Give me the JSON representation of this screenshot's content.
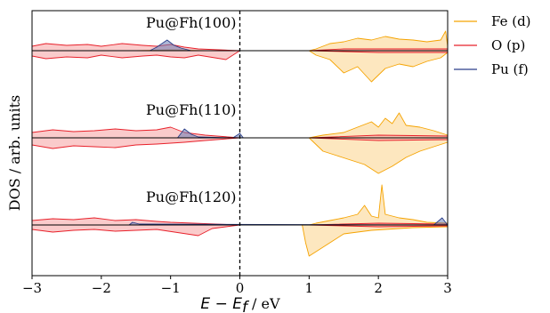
{
  "chart_data": {
    "type": "area",
    "xlabel": {
      "math": "E − E",
      "sub": "f",
      "unit": " / eV"
    },
    "ylabel": "DOS / arb. units",
    "xlim": [
      -3,
      3
    ],
    "xticks": [
      -3,
      -2,
      -1,
      0,
      1,
      2,
      3
    ],
    "xtick_labels": [
      "−3",
      "−2",
      "−1",
      "0",
      "1",
      "2",
      "3"
    ],
    "fermi_level_line": {
      "x": 0,
      "style": "dashed"
    },
    "legend": {
      "placement": "outside-right"
    },
    "series_styles": [
      {
        "name": "Fe (d)",
        "color": "#f5a300",
        "fill": "#fbd38a"
      },
      {
        "name": "O (p)",
        "color": "#e8202a",
        "fill": "#f5a0a0"
      },
      {
        "name": "Pu (f)",
        "color": "#2a3f8a",
        "fill": "#6a7bb5"
      }
    ],
    "panels": [
      {
        "label": "Pu@Fh(100)",
        "baseline_level": 2,
        "series": [
          {
            "name": "Fe (d)",
            "up": [
              [
                -3,
                0
              ],
              [
                -2.5,
                0
              ],
              [
                -2.0,
                0
              ],
              [
                -1.5,
                0
              ],
              [
                -1.0,
                0.01
              ],
              [
                -0.5,
                0
              ],
              [
                0,
                0
              ],
              [
                0.5,
                0
              ],
              [
                1.0,
                0
              ],
              [
                1.1,
                0.02
              ],
              [
                1.3,
                0.08
              ],
              [
                1.5,
                0.1
              ],
              [
                1.7,
                0.14
              ],
              [
                1.9,
                0.12
              ],
              [
                2.1,
                0.16
              ],
              [
                2.3,
                0.13
              ],
              [
                2.5,
                0.12
              ],
              [
                2.7,
                0.1
              ],
              [
                2.9,
                0.12
              ],
              [
                2.97,
                0.22
              ],
              [
                3.0,
                0.05
              ]
            ],
            "down": [
              [
                -3,
                0
              ],
              [
                -2.0,
                0
              ],
              [
                -1.0,
                0
              ],
              [
                0,
                0
              ],
              [
                1.0,
                0
              ],
              [
                1.1,
                -0.05
              ],
              [
                1.3,
                -0.1
              ],
              [
                1.5,
                -0.25
              ],
              [
                1.7,
                -0.18
              ],
              [
                1.9,
                -0.35
              ],
              [
                2.1,
                -0.2
              ],
              [
                2.3,
                -0.15
              ],
              [
                2.5,
                -0.18
              ],
              [
                2.7,
                -0.12
              ],
              [
                2.9,
                -0.08
              ],
              [
                3.0,
                -0.02
              ]
            ]
          },
          {
            "name": "O (p)",
            "up": [
              [
                -3,
                0.05
              ],
              [
                -2.8,
                0.08
              ],
              [
                -2.5,
                0.06
              ],
              [
                -2.2,
                0.07
              ],
              [
                -2.0,
                0.05
              ],
              [
                -1.7,
                0.08
              ],
              [
                -1.4,
                0.06
              ],
              [
                -1.2,
                0.05
              ],
              [
                -1.0,
                0.07
              ],
              [
                -0.8,
                0.04
              ],
              [
                -0.6,
                0.02
              ],
              [
                0,
                0
              ],
              [
                1.0,
                0
              ],
              [
                1.5,
                0.02
              ],
              [
                2.0,
                0.02
              ],
              [
                2.5,
                0.02
              ],
              [
                3.0,
                0.02
              ]
            ],
            "down": [
              [
                -3,
                -0.06
              ],
              [
                -2.8,
                -0.09
              ],
              [
                -2.5,
                -0.07
              ],
              [
                -2.2,
                -0.08
              ],
              [
                -2.0,
                -0.05
              ],
              [
                -1.7,
                -0.08
              ],
              [
                -1.4,
                -0.06
              ],
              [
                -1.2,
                -0.05
              ],
              [
                -1.0,
                -0.07
              ],
              [
                -0.8,
                -0.08
              ],
              [
                -0.6,
                -0.05
              ],
              [
                -0.2,
                -0.1
              ],
              [
                0,
                0
              ],
              [
                1.0,
                0
              ],
              [
                2.0,
                -0.02
              ],
              [
                3.0,
                -0.02
              ]
            ]
          },
          {
            "name": "Pu (f)",
            "up": [
              [
                -3,
                0
              ],
              [
                -1.3,
                0
              ],
              [
                -1.2,
                0.04
              ],
              [
                -1.05,
                0.12
              ],
              [
                -0.95,
                0.06
              ],
              [
                -0.85,
                0.03
              ],
              [
                -0.7,
                0
              ],
              [
                3.0,
                0
              ]
            ],
            "down": [
              [
                -3,
                0
              ],
              [
                3.0,
                0
              ]
            ]
          }
        ]
      },
      {
        "label": "Pu@Fh(110)",
        "baseline_level": 1,
        "series": [
          {
            "name": "Fe (d)",
            "up": [
              [
                -3,
                0
              ],
              [
                -1.0,
                0
              ],
              [
                0,
                0
              ],
              [
                1.0,
                0
              ],
              [
                1.2,
                0.03
              ],
              [
                1.5,
                0.06
              ],
              [
                1.7,
                0.12
              ],
              [
                1.9,
                0.18
              ],
              [
                2.0,
                0.12
              ],
              [
                2.1,
                0.22
              ],
              [
                2.2,
                0.16
              ],
              [
                2.3,
                0.28
              ],
              [
                2.4,
                0.14
              ],
              [
                2.6,
                0.12
              ],
              [
                2.8,
                0.08
              ],
              [
                3.0,
                0.03
              ]
            ],
            "down": [
              [
                -3,
                0
              ],
              [
                -1.0,
                0
              ],
              [
                0,
                0
              ],
              [
                1.0,
                0
              ],
              [
                1.2,
                -0.15
              ],
              [
                1.4,
                -0.2
              ],
              [
                1.6,
                -0.25
              ],
              [
                1.8,
                -0.3
              ],
              [
                2.0,
                -0.4
              ],
              [
                2.2,
                -0.32
              ],
              [
                2.4,
                -0.22
              ],
              [
                2.6,
                -0.15
              ],
              [
                2.8,
                -0.1
              ],
              [
                3.0,
                -0.05
              ]
            ]
          },
          {
            "name": "O (p)",
            "up": [
              [
                -3,
                0.06
              ],
              [
                -2.7,
                0.09
              ],
              [
                -2.4,
                0.07
              ],
              [
                -2.1,
                0.08
              ],
              [
                -1.8,
                0.1
              ],
              [
                -1.5,
                0.08
              ],
              [
                -1.2,
                0.09
              ],
              [
                -1.0,
                0.12
              ],
              [
                -0.8,
                0.06
              ],
              [
                -0.5,
                0.03
              ],
              [
                0,
                0
              ],
              [
                1.0,
                0
              ],
              [
                2.0,
                0.03
              ],
              [
                3.0,
                0.02
              ]
            ],
            "down": [
              [
                -3,
                -0.08
              ],
              [
                -2.7,
                -0.12
              ],
              [
                -2.4,
                -0.09
              ],
              [
                -2.1,
                -0.1
              ],
              [
                -1.8,
                -0.11
              ],
              [
                -1.5,
                -0.08
              ],
              [
                -1.2,
                -0.07
              ],
              [
                -1.0,
                -0.06
              ],
              [
                -0.8,
                -0.05
              ],
              [
                -0.5,
                -0.03
              ],
              [
                0,
                0
              ],
              [
                1.0,
                0
              ],
              [
                2.0,
                -0.03
              ],
              [
                3.0,
                -0.02
              ]
            ]
          },
          {
            "name": "Pu (f)",
            "up": [
              [
                -3,
                0
              ],
              [
                -0.9,
                0
              ],
              [
                -0.8,
                0.1
              ],
              [
                -0.7,
                0.04
              ],
              [
                -0.6,
                0.01
              ],
              [
                -0.1,
                0
              ],
              [
                0,
                0.05
              ],
              [
                0.05,
                0
              ],
              [
                3.0,
                0
              ]
            ],
            "down": [
              [
                -3,
                0
              ],
              [
                3.0,
                0
              ]
            ]
          }
        ]
      },
      {
        "label": "Pu@Fh(120)",
        "baseline_level": 0,
        "series": [
          {
            "name": "Fe (d)",
            "up": [
              [
                -3,
                0
              ],
              [
                -1.0,
                0
              ],
              [
                0,
                0
              ],
              [
                1.0,
                0
              ],
              [
                1.1,
                0.02
              ],
              [
                1.3,
                0.05
              ],
              [
                1.5,
                0.08
              ],
              [
                1.7,
                0.12
              ],
              [
                1.8,
                0.22
              ],
              [
                1.9,
                0.1
              ],
              [
                2.0,
                0.08
              ],
              [
                2.05,
                0.45
              ],
              [
                2.1,
                0.12
              ],
              [
                2.3,
                0.08
              ],
              [
                2.5,
                0.06
              ],
              [
                2.7,
                0.03
              ],
              [
                3.0,
                0.02
              ]
            ],
            "down": [
              [
                -3,
                0
              ],
              [
                -1.0,
                0
              ],
              [
                0,
                0
              ],
              [
                0.9,
                0
              ],
              [
                0.95,
                -0.2
              ],
              [
                1.0,
                -0.35
              ],
              [
                1.1,
                -0.3
              ],
              [
                1.3,
                -0.2
              ],
              [
                1.5,
                -0.1
              ],
              [
                1.7,
                -0.08
              ],
              [
                1.9,
                -0.06
              ],
              [
                2.1,
                -0.05
              ],
              [
                2.3,
                -0.04
              ],
              [
                2.5,
                -0.03
              ],
              [
                3.0,
                -0.02
              ]
            ]
          },
          {
            "name": "O (p)",
            "up": [
              [
                -3,
                0.05
              ],
              [
                -2.7,
                0.07
              ],
              [
                -2.4,
                0.06
              ],
              [
                -2.1,
                0.08
              ],
              [
                -1.8,
                0.05
              ],
              [
                -1.5,
                0.06
              ],
              [
                -1.2,
                0.04
              ],
              [
                -1.0,
                0.03
              ],
              [
                0,
                0
              ],
              [
                1.0,
                0
              ],
              [
                2.0,
                0.02
              ],
              [
                3.0,
                0.01
              ]
            ],
            "down": [
              [
                -3,
                -0.05
              ],
              [
                -2.7,
                -0.08
              ],
              [
                -2.4,
                -0.06
              ],
              [
                -2.1,
                -0.05
              ],
              [
                -1.8,
                -0.07
              ],
              [
                -1.5,
                -0.06
              ],
              [
                -1.2,
                -0.05
              ],
              [
                -0.6,
                -0.12
              ],
              [
                -0.4,
                -0.04
              ],
              [
                0,
                0
              ],
              [
                1.0,
                0
              ],
              [
                2.0,
                -0.02
              ],
              [
                3.0,
                -0.01
              ]
            ]
          },
          {
            "name": "Pu (f)",
            "up": [
              [
                -3,
                0
              ],
              [
                -1.6,
                0
              ],
              [
                -1.55,
                0.03
              ],
              [
                -1.45,
                0.01
              ],
              [
                2.8,
                0
              ],
              [
                2.92,
                0.08
              ],
              [
                2.98,
                0.02
              ],
              [
                3.0,
                0
              ]
            ],
            "down": [
              [
                -3,
                0
              ],
              [
                3.0,
                0
              ]
            ]
          }
        ]
      }
    ]
  }
}
